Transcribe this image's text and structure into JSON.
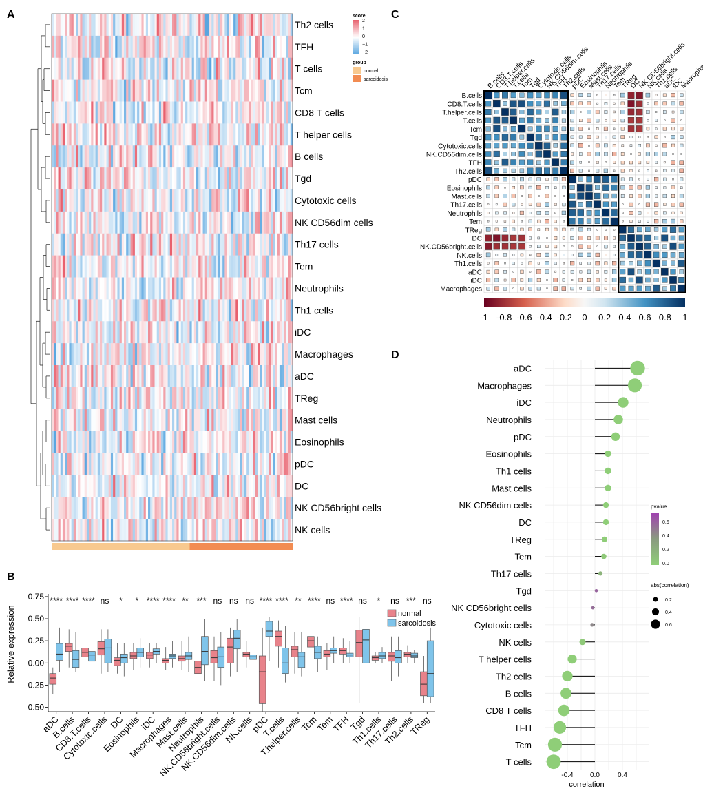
{
  "panels": {
    "a": "A",
    "b": "B",
    "c": "C",
    "d": "D"
  },
  "colors": {
    "normal": "#f8c98f",
    "sarcoidosis": "#f28c52",
    "box_normal": "#e8828a",
    "box_sarc": "#7fc4ea",
    "neg": "#67001f",
    "pos": "#053061",
    "lollipop_low": "#8fce78",
    "lollipop_high": "#a040b0"
  },
  "chart_data": [
    {
      "id": "heatmap",
      "type": "heatmap",
      "title": "",
      "rows": [
        "Th2 cells",
        "TFH",
        "T cells",
        "Tcm",
        "CD8 T cells",
        "T helper cells",
        "B cells",
        "Tgd",
        "Cytotoxic cells",
        "NK CD56dim cells",
        "Th17 cells",
        "Tem",
        "Neutrophils",
        "Th1 cells",
        "iDC",
        "Macrophages",
        "aDC",
        "TReg",
        "Mast cells",
        "Eosinophils",
        "pDC",
        "DC",
        "NK CD56bright cells",
        "NK cells"
      ],
      "n_columns": 110,
      "n_normal": 63,
      "legend_score_title": "score",
      "legend_score_ticks": [
        "2",
        "1",
        "0",
        "−1",
        "−2"
      ],
      "score_range": [
        -2,
        2
      ],
      "legend_group_title": "group",
      "groups": [
        "normal",
        "sarcoidosis"
      ]
    },
    {
      "id": "boxplot",
      "type": "bar",
      "ylabel": "Relative expression",
      "ylim": [
        -0.55,
        0.78
      ],
      "yticks": [
        0.75,
        0.5,
        0.25,
        0.0,
        -0.25,
        -0.5
      ],
      "ytick_labels": [
        "0.75",
        "0.50",
        "0.25",
        "0.00",
        "-0.25",
        "-0.50"
      ],
      "legend": [
        "normal",
        "sarcoidosis"
      ],
      "categories": [
        "aDC",
        "B.cells",
        "CD8.T.cells",
        "Cytotoxic.cells",
        "DC",
        "Eosinophils",
        "iDC",
        "Macrophages",
        "Mast.cells",
        "Neutrophils",
        "NK.CD56bright.cells",
        "NK.CD56dim.cells",
        "NK.cells",
        "pDC",
        "T.cells",
        "T.helper.cells",
        "Tcm",
        "Tem",
        "TFH",
        "Tgd",
        "Th1.cells",
        "Th17.cells",
        "Th2.cells",
        "TReg"
      ],
      "significance": [
        "****",
        "****",
        "****",
        "ns",
        "*",
        "*",
        "****",
        "****",
        "**",
        "***",
        "ns",
        "ns",
        "ns",
        "****",
        "****",
        "**",
        "****",
        "ns",
        "****",
        "ns",
        "*",
        "ns",
        "***",
        "ns"
      ],
      "series": [
        {
          "name": "normal",
          "boxes": [
            [
              -0.35,
              -0.24,
              -0.17,
              -0.12,
              -0.05
            ],
            [
              -0.05,
              0.13,
              0.19,
              0.22,
              0.38
            ],
            [
              -0.12,
              0.07,
              0.12,
              0.17,
              0.28
            ],
            [
              -0.12,
              0.09,
              0.16,
              0.24,
              0.38
            ],
            [
              -0.12,
              -0.03,
              0.03,
              0.06,
              0.22
            ],
            [
              -0.08,
              0.05,
              0.08,
              0.12,
              0.22
            ],
            [
              -0.05,
              0.05,
              0.09,
              0.12,
              0.22
            ],
            [
              -0.08,
              0.0,
              0.03,
              0.05,
              0.18
            ],
            [
              -0.08,
              0.02,
              0.05,
              0.08,
              0.25
            ],
            [
              -0.25,
              -0.12,
              -0.05,
              0.02,
              0.22
            ],
            [
              -0.2,
              0.0,
              0.06,
              0.14,
              0.3
            ],
            [
              -0.15,
              0.0,
              0.18,
              0.28,
              0.4
            ],
            [
              -0.05,
              0.07,
              0.1,
              0.12,
              0.25
            ],
            [
              -0.55,
              -0.46,
              -0.1,
              0.08,
              0.4
            ],
            [
              -0.05,
              0.19,
              0.3,
              0.36,
              0.48
            ],
            [
              -0.12,
              0.07,
              0.15,
              0.19,
              0.35
            ],
            [
              0.12,
              0.18,
              0.25,
              0.3,
              0.4
            ],
            [
              -0.08,
              0.07,
              0.1,
              0.14,
              0.22
            ],
            [
              0.0,
              0.1,
              0.14,
              0.17,
              0.28
            ],
            [
              -0.45,
              0.07,
              0.23,
              0.37,
              0.52
            ],
            [
              0.0,
              0.03,
              0.06,
              0.08,
              0.12
            ],
            [
              -0.2,
              0.02,
              0.08,
              0.12,
              0.3
            ],
            [
              0.0,
              0.07,
              0.1,
              0.12,
              0.2
            ],
            [
              -0.45,
              -0.37,
              -0.24,
              -0.1,
              0.08
            ]
          ]
        },
        {
          "name": "sarcoidosis",
          "boxes": [
            [
              -0.1,
              0.03,
              0.1,
              0.22,
              0.4
            ],
            [
              -0.1,
              -0.05,
              0.04,
              0.14,
              0.35
            ],
            [
              -0.2,
              0.02,
              0.09,
              0.13,
              0.32
            ],
            [
              -0.1,
              0.0,
              0.17,
              0.27,
              0.38
            ],
            [
              -0.15,
              0.0,
              0.06,
              0.1,
              0.22
            ],
            [
              -0.05,
              0.07,
              0.12,
              0.17,
              0.28
            ],
            [
              0.0,
              0.1,
              0.13,
              0.16,
              0.22
            ],
            [
              -0.05,
              0.05,
              0.08,
              0.1,
              0.25
            ],
            [
              -0.1,
              0.04,
              0.08,
              0.12,
              0.3
            ],
            [
              -0.2,
              -0.02,
              0.13,
              0.3,
              0.5
            ],
            [
              -0.25,
              -0.05,
              0.07,
              0.18,
              0.35
            ],
            [
              -0.1,
              0.16,
              0.28,
              0.37,
              0.5
            ],
            [
              -0.12,
              0.04,
              0.07,
              0.09,
              0.2
            ],
            [
              0.02,
              0.3,
              0.36,
              0.47,
              0.52
            ],
            [
              -0.22,
              -0.12,
              0.0,
              0.17,
              0.42
            ],
            [
              -0.15,
              -0.05,
              0.07,
              0.12,
              0.35
            ],
            [
              -0.1,
              0.05,
              0.12,
              0.19,
              0.3
            ],
            [
              0.0,
              0.11,
              0.14,
              0.17,
              0.3
            ],
            [
              0.0,
              0.07,
              0.09,
              0.11,
              0.25
            ],
            [
              -0.38,
              0.0,
              0.26,
              0.38,
              0.45
            ],
            [
              0.0,
              0.05,
              0.08,
              0.12,
              0.18
            ],
            [
              -0.15,
              0.0,
              0.06,
              0.14,
              0.3
            ],
            [
              0.0,
              0.06,
              0.08,
              0.11,
              0.15
            ],
            [
              -0.45,
              -0.38,
              -0.12,
              0.25,
              0.4
            ]
          ]
        }
      ]
    },
    {
      "id": "correlation",
      "type": "heatmap",
      "labels": [
        "B.cells",
        "CD8.T.cells",
        "T.helper.cells",
        "T.cells",
        "Tcm",
        "Tgd",
        "Cytotoxic.cells",
        "NK.CD56dim.cells",
        "TFH",
        "Th2.cells",
        "pDC",
        "Eosinophils",
        "Mast.cells",
        "Th17.cells",
        "Neutrophils",
        "Tem",
        "TReg",
        "DC",
        "NK.CD56bright.cells",
        "NK.cells",
        "Th1.cells",
        "aDC",
        "iDC",
        "Macrophages"
      ],
      "clusters": [
        [
          1,
          10
        ],
        [
          11,
          16
        ],
        [
          17,
          24
        ]
      ],
      "colorbar_ticks": [
        "-1",
        "-0.8",
        "-0.6",
        "-0.4",
        "-0.2",
        "0",
        "0.2",
        "0.4",
        "0.6",
        "0.8",
        "1"
      ],
      "range": [
        -1,
        1
      ]
    },
    {
      "id": "lollipop",
      "type": "scatter",
      "xlabel": "correlation",
      "xticks": [
        "-0.4",
        "0.0",
        "0.4"
      ],
      "xlim": [
        -0.72,
        0.78
      ],
      "categories": [
        "aDC",
        "Macrophages",
        "iDC",
        "Neutrophils",
        "pDC",
        "Eosinophils",
        "Th1 cells",
        "Mast cells",
        "NK CD56dim cells",
        "DC",
        "TReg",
        "Tem",
        "Th17 cells",
        "Tgd",
        "NK CD56bright cells",
        "Cytotoxic cells",
        "NK cells",
        "T helper cells",
        "Th2 cells",
        "B cells",
        "CD8 T cells",
        "TFH",
        "Tcm",
        "T cells"
      ],
      "values": [
        0.62,
        0.58,
        0.41,
        0.34,
        0.3,
        0.19,
        0.19,
        0.19,
        0.16,
        0.16,
        0.14,
        0.13,
        0.08,
        0.02,
        -0.03,
        -0.04,
        -0.18,
        -0.33,
        -0.4,
        -0.42,
        -0.45,
        -0.51,
        -0.58,
        -0.6
      ],
      "pvalues": [
        0.0,
        0.0,
        0.0,
        0.0,
        0.0,
        0.0,
        0.0,
        0.0,
        0.0,
        0.0,
        0.01,
        0.05,
        0.25,
        0.8,
        0.75,
        0.6,
        0.05,
        0.0,
        0.0,
        0.0,
        0.0,
        0.0,
        0.0,
        0.0
      ],
      "legend_pvalue_title": "pvalue",
      "legend_pvalue_ticks": [
        "0.6",
        "0.4",
        "0.2",
        "0.0"
      ],
      "legend_size_title": "abs(correlation)",
      "legend_size_ticks": [
        "0.2",
        "0.4",
        "0.6"
      ]
    }
  ]
}
